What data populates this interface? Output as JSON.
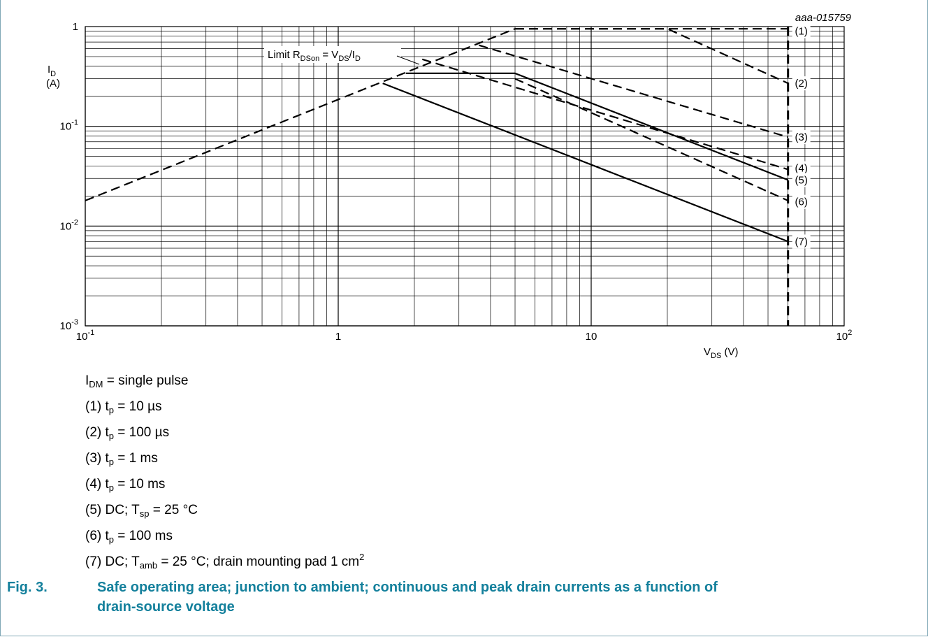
{
  "chart_data": {
    "type": "line",
    "id_label": "aaa-015759",
    "xscale": "log",
    "yscale": "log",
    "xlim": [
      0.1,
      100
    ],
    "ylim": [
      0.001,
      1
    ],
    "grid": true,
    "x_ticks": [
      {
        "value": 0.1,
        "base": "10",
        "exp": "-1"
      },
      {
        "value": 1,
        "base": "1",
        "exp": ""
      },
      {
        "value": 10,
        "base": "10",
        "exp": ""
      },
      {
        "value": 100,
        "base": "10",
        "exp": "2"
      }
    ],
    "y_ticks": [
      {
        "value": 1,
        "base": "1",
        "exp": ""
      },
      {
        "value": 0.1,
        "base": "10",
        "exp": "-1"
      },
      {
        "value": 0.01,
        "base": "10",
        "exp": "-2"
      },
      {
        "value": 0.001,
        "base": "10",
        "exp": "-3"
      }
    ],
    "ylabel": {
      "main": "I",
      "sub": "D",
      "unit": "(A)"
    },
    "xlabel": {
      "main": "V",
      "sub": "DS",
      "unit": " (V)"
    },
    "limit_label": {
      "pre": "Limit R",
      "sub1": "DSon",
      "mid": " = V",
      "sub2": "DS",
      "mid2": "/I",
      "sub3": "D"
    },
    "limit_line": {
      "points": [
        [
          0.1,
          0.018
        ],
        [
          5,
          0.95
        ]
      ],
      "style": "dashed"
    },
    "vmax_line": {
      "x": 60,
      "ylim": [
        0.001,
        1
      ],
      "style": "dashed"
    },
    "series": [
      {
        "name": "(1)",
        "style": "dashed",
        "points": [
          [
            5,
            0.95
          ],
          [
            60,
            0.95
          ]
        ]
      },
      {
        "name": "(2)",
        "style": "dashed",
        "points": [
          [
            5,
            0.95
          ],
          [
            20,
            0.95
          ],
          [
            60,
            0.27
          ]
        ]
      },
      {
        "name": "(3)",
        "style": "dashed",
        "points": [
          [
            3.6,
            0.65
          ],
          [
            60,
            0.078
          ]
        ]
      },
      {
        "name": "(4)",
        "style": "dashed",
        "points": [
          [
            2.15,
            0.47
          ],
          [
            60,
            0.037
          ]
        ]
      },
      {
        "name": "(5)",
        "style": "solid",
        "points": [
          [
            1.85,
            0.34
          ],
          [
            5,
            0.34
          ],
          [
            60,
            0.029
          ]
        ]
      },
      {
        "name": "(6)",
        "style": "dashed",
        "points": [
          [
            5,
            0.3
          ],
          [
            60,
            0.018
          ]
        ]
      },
      {
        "name": "(7)",
        "style": "solid",
        "points": [
          [
            1.5,
            0.27
          ],
          [
            60,
            0.007
          ]
        ]
      }
    ],
    "series_labels": [
      {
        "text": "(1)",
        "y": 0.9
      },
      {
        "text": "(2)",
        "y": 0.27
      },
      {
        "text": "(3)",
        "y": 0.078
      },
      {
        "text": "(4)",
        "y": 0.038
      },
      {
        "text": "(5)",
        "y": 0.029
      },
      {
        "text": "(6)",
        "y": 0.0175
      },
      {
        "text": "(7)",
        "y": 0.007
      }
    ]
  },
  "notes": [
    {
      "parts": [
        {
          "t": "I"
        },
        {
          "t": "DM",
          "sub": true
        },
        {
          "t": " = single pulse"
        }
      ]
    },
    {
      "parts": [
        {
          "t": "(1) t"
        },
        {
          "t": "p",
          "sub": true
        },
        {
          "t": " = 10 µs"
        }
      ]
    },
    {
      "parts": [
        {
          "t": "(2) t"
        },
        {
          "t": "p",
          "sub": true
        },
        {
          "t": " = 100 µs"
        }
      ]
    },
    {
      "parts": [
        {
          "t": "(3) t"
        },
        {
          "t": "p",
          "sub": true
        },
        {
          "t": " = 1 ms"
        }
      ]
    },
    {
      "parts": [
        {
          "t": "(4) t"
        },
        {
          "t": "p",
          "sub": true
        },
        {
          "t": " = 10 ms"
        }
      ]
    },
    {
      "parts": [
        {
          "t": "(5) DC; T"
        },
        {
          "t": "sp",
          "sub": true
        },
        {
          "t": " = 25 °C"
        }
      ]
    },
    {
      "parts": [
        {
          "t": "(6) t"
        },
        {
          "t": "p",
          "sub": true
        },
        {
          "t": " = 100 ms"
        }
      ]
    },
    {
      "parts": [
        {
          "t": "(7) DC; T"
        },
        {
          "t": "amb",
          "sub": true
        },
        {
          "t": " = 25 °C; drain mounting pad 1 cm"
        },
        {
          "t": "2",
          "sup": true
        }
      ]
    }
  ],
  "caption": {
    "fig": "Fig. 3.",
    "text": "Safe operating area; junction to ambient; continuous and peak drain currents as a function of drain-source voltage"
  },
  "colors": {
    "caption": "#14809c",
    "frame": "#7fa7b5",
    "line": "#000000"
  }
}
